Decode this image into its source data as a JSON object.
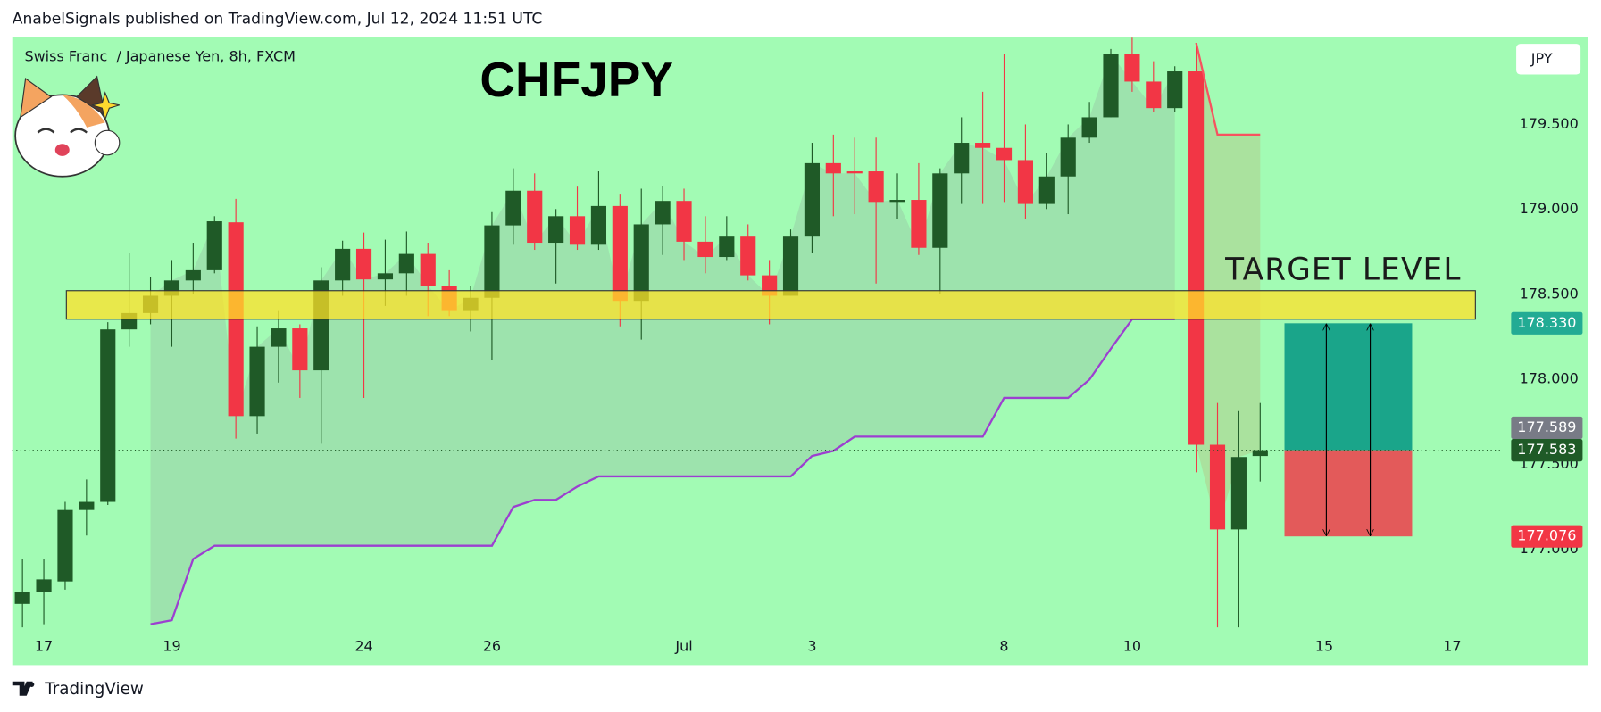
{
  "header": {
    "text": "AnabelSignals published on TradingView.com, Jul 12, 2024 11:51 UTC"
  },
  "footer": {
    "brand": "TradingView"
  },
  "chart_data": {
    "type": "candlestick",
    "title": "CHFJPY",
    "subtitle": "Swiss Franc  / Japanese Yen, 8h, FXCM",
    "currency": "JPY",
    "categories": [
      null,
      "17",
      null,
      null,
      null,
      null,
      null,
      "19",
      null,
      null,
      null,
      null,
      null,
      null,
      null,
      null,
      "24",
      null,
      null,
      null,
      null,
      null,
      "26",
      null,
      null,
      null,
      null,
      null,
      null,
      null,
      null,
      "Jul",
      null,
      null,
      null,
      null,
      null,
      "3",
      null,
      null,
      null,
      null,
      null,
      null,
      null,
      null,
      "8",
      null,
      null,
      null,
      null,
      null,
      "10",
      null,
      null,
      null,
      null,
      null,
      null,
      null,
      null,
      "15",
      null,
      null,
      null,
      null,
      null,
      "17",
      null,
      null
    ],
    "open": [
      176.679,
      176.751,
      176.811,
      177.231,
      177.279,
      178.294,
      178.39,
      178.492,
      178.582,
      178.642,
      178.924,
      177.784,
      178.192,
      178.3,
      178.053,
      178.582,
      178.768,
      178.588,
      178.624,
      178.738,
      178.552,
      178.402,
      178.48,
      178.906,
      179.11,
      178.804,
      178.96,
      178.792,
      179.02,
      178.462,
      178.912,
      179.05,
      178.81,
      178.72,
      178.84,
      178.612,
      178.492,
      178.84,
      179.272,
      179.224,
      179.224,
      179.044,
      179.056,
      178.774,
      179.212,
      179.392,
      179.362,
      179.29,
      179.032,
      179.194,
      179.422,
      179.542,
      179.914,
      179.752,
      179.596,
      179.812,
      177.615,
      177.117,
      177.549,
      null,
      null,
      null,
      null,
      null,
      null,
      null,
      null,
      null,
      null,
      null
    ],
    "high": [
      176.943,
      176.943,
      177.279,
      177.411,
      178.336,
      178.744,
      178.6,
      178.702,
      178.804,
      178.96,
      179.062,
      178.312,
      178.402,
      178.324,
      178.66,
      178.816,
      178.864,
      178.822,
      178.87,
      178.804,
      178.642,
      178.552,
      178.984,
      179.242,
      179.212,
      179.002,
      179.134,
      179.224,
      179.092,
      179.122,
      179.14,
      179.122,
      178.96,
      178.96,
      178.912,
      178.702,
      178.882,
      179.392,
      179.44,
      179.422,
      179.422,
      179.212,
      179.272,
      179.242,
      179.542,
      179.692,
      179.914,
      179.5,
      179.332,
      179.5,
      179.632,
      179.944,
      180.01,
      179.872,
      179.842,
      179.98,
      177.861,
      177.813,
      177.861,
      null,
      null,
      null,
      null,
      null,
      null,
      null,
      null,
      null,
      null,
      null
    ],
    "low": [
      176.541,
      176.559,
      176.763,
      177.081,
      177.261,
      178.192,
      178.324,
      178.192,
      178.504,
      178.624,
      177.651,
      177.681,
      177.981,
      177.891,
      177.621,
      178.492,
      177.891,
      178.432,
      178.492,
      178.372,
      178.372,
      178.282,
      178.114,
      178.792,
      178.762,
      178.564,
      178.762,
      178.762,
      178.312,
      178.234,
      178.732,
      178.702,
      178.624,
      178.702,
      178.582,
      178.324,
      178.492,
      178.744,
      178.96,
      178.972,
      178.564,
      178.942,
      178.732,
      178.504,
      179.032,
      179.032,
      179.044,
      178.942,
      179.002,
      178.972,
      179.392,
      179.542,
      179.692,
      179.572,
      179.572,
      177.453,
      176.541,
      176.541,
      177.399,
      null,
      null,
      null,
      null,
      null,
      null,
      null,
      null,
      null,
      null,
      null
    ],
    "close": [
      176.751,
      176.823,
      177.231,
      177.279,
      178.294,
      178.39,
      178.492,
      178.582,
      178.642,
      178.93,
      177.784,
      178.192,
      178.3,
      178.053,
      178.582,
      178.768,
      178.588,
      178.624,
      178.738,
      178.552,
      178.402,
      178.48,
      178.906,
      179.11,
      178.804,
      178.96,
      178.792,
      179.02,
      178.462,
      178.912,
      179.05,
      178.81,
      178.72,
      178.84,
      178.612,
      178.492,
      178.84,
      179.272,
      179.212,
      179.212,
      179.044,
      179.056,
      178.774,
      179.212,
      179.392,
      179.362,
      179.29,
      179.032,
      179.194,
      179.422,
      179.542,
      179.914,
      179.752,
      179.596,
      179.812,
      177.615,
      177.117,
      177.543,
      177.583,
      null,
      null,
      null,
      null,
      null,
      null,
      null,
      null,
      null,
      null,
      null
    ],
    "up_color": "#1f5a27",
    "down_color": "#f23645",
    "lines": [
      {
        "color": "#9c3fd0",
        "values": [
          null,
          null,
          null,
          null,
          null,
          null,
          176.559,
          176.583,
          176.943,
          177.021,
          177.021,
          177.021,
          177.021,
          177.021,
          177.021,
          177.021,
          177.021,
          177.021,
          177.021,
          177.021,
          177.021,
          177.021,
          177.021,
          177.249,
          177.291,
          177.291,
          177.369,
          177.429,
          177.429,
          177.429,
          177.429,
          177.429,
          177.429,
          177.429,
          177.429,
          177.429,
          177.429,
          177.549,
          177.579,
          177.663,
          177.663,
          177.663,
          177.663,
          177.663,
          177.663,
          177.663,
          177.891,
          177.891,
          177.891,
          177.891,
          177.999,
          178.18,
          178.354,
          178.354,
          178.354,
          null,
          null,
          null,
          null,
          null,
          null,
          null,
          null,
          null,
          null,
          null,
          null,
          null,
          null,
          null
        ]
      },
      {
        "color": "#f7525f",
        "values": [
          null,
          null,
          null,
          null,
          null,
          null,
          null,
          null,
          null,
          null,
          null,
          null,
          null,
          null,
          null,
          null,
          null,
          null,
          null,
          null,
          null,
          null,
          null,
          null,
          null,
          null,
          null,
          null,
          null,
          null,
          null,
          null,
          null,
          null,
          null,
          null,
          null,
          null,
          null,
          null,
          null,
          null,
          null,
          null,
          null,
          null,
          null,
          null,
          null,
          null,
          null,
          null,
          null,
          null,
          null,
          179.98,
          179.44,
          179.44,
          179.44,
          null,
          null,
          null,
          null,
          null,
          null,
          null,
          null,
          null,
          null,
          null
        ]
      }
    ],
    "ylim": [
      176.511,
      180.016
    ],
    "yticks": [
      {
        "value": 177,
        "label": "177.000"
      },
      {
        "value": 177.5,
        "label": "177.500"
      },
      {
        "value": 178,
        "label": "178.000"
      },
      {
        "value": 178.5,
        "label": "178.500"
      },
      {
        "value": 179,
        "label": "179.000"
      },
      {
        "value": 179.5,
        "label": "179.500"
      }
    ],
    "target_zone": {
      "label": "TARGET LEVEL",
      "low": 178.354,
      "high": 178.522,
      "color": "#ffe128"
    },
    "price_labels": [
      {
        "value": 178.33,
        "label": "178.330",
        "color": "#22ab94"
      },
      {
        "value": 177.589,
        "label": "177.589",
        "color": "#787b86"
      },
      {
        "value": 177.583,
        "label": "177.583",
        "color": "#1f5a27"
      },
      {
        "value": 177.076,
        "label": "177.076",
        "color": "#f23645"
      }
    ]
  }
}
